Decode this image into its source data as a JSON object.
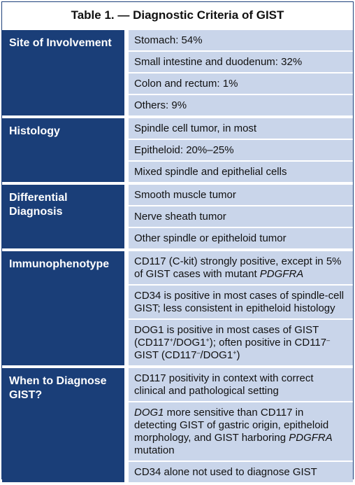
{
  "title": "Table 1. — Diagnostic Criteria of GIST",
  "sections": [
    {
      "category": "Site of Involvement",
      "items": [
        "Stomach: 54%",
        "Small intestine and duodenum: 32%",
        "Colon and rectum: 1%",
        "Others: 9%"
      ]
    },
    {
      "category": "Histology",
      "items": [
        "Spindle cell tumor, in most",
        "Epitheloid: 20%–25%",
        "Mixed spindle and epithelial cells"
      ]
    },
    {
      "category": "Differential Diagnosis",
      "items": [
        "Smooth muscle tumor",
        "Nerve sheath tumor",
        "Other spindle or epitheloid tumor"
      ]
    },
    {
      "category": "Immunophenotype",
      "items": [
        {
          "pre": "CD117 (C-kit) strongly positive, except in 5% of GIST cases with mutant ",
          "italic": "PDGFRA"
        },
        "CD34 is positive in most cases of spindle-cell GIST; less consistent in epitheloid histology",
        {
          "p1": "DOG1 is positive in most cases of GIST (CD117",
          "s1": "+",
          "p2": "/DOG1",
          "s2": "+",
          "p3": "); often positive in CD117",
          "s3": "–",
          "p4": " GIST (CD117",
          "s4": "–",
          "p5": "/DOG1",
          "s5": "+",
          "p6": ")"
        }
      ]
    },
    {
      "category": "When to Diagnose GIST?",
      "items": [
        "CD117 positivity in context with correct clinical and pathological setting",
        {
          "italic1": "DOG1",
          "mid": " more sensitive than CD117 in detecting GIST of gastric origin, epitheloid morphology, and GIST harboring ",
          "italic2": "PDGFRA",
          "post": " mutation"
        },
        "CD34 alone not used to diagnose GIST"
      ]
    }
  ],
  "colors": {
    "header_bg": "#1a3e78",
    "cell_bg": "#c9d5ea",
    "border": "#1d3f7a"
  }
}
